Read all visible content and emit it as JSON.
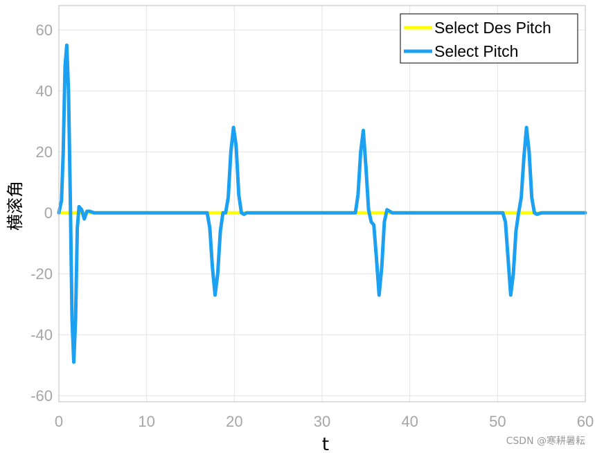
{
  "chart_data": {
    "type": "line",
    "title": "",
    "xlabel": "t",
    "ylabel": "横滚角",
    "xlim": [
      0,
      60
    ],
    "ylim": [
      -62,
      68
    ],
    "xticks": [
      0,
      10,
      20,
      30,
      40,
      50,
      60
    ],
    "yticks": [
      -60,
      -40,
      -20,
      0,
      20,
      40,
      60
    ],
    "xtick_labels": [
      "0",
      "10",
      "20",
      "30",
      "40",
      "50",
      "60"
    ],
    "ytick_labels": [
      "-60",
      "-40",
      "-20",
      "0",
      "20",
      "40",
      "60"
    ],
    "grid": true,
    "legend_position": "top-right",
    "series": [
      {
        "name": "Select Des Pitch",
        "color": "#ffff00",
        "x": [
          0,
          60
        ],
        "y": [
          0,
          0
        ]
      },
      {
        "name": "Select Pitch",
        "color": "#1ba0f2",
        "x": [
          0,
          0.3,
          0.5,
          0.7,
          0.9,
          1.1,
          1.3,
          1.5,
          1.7,
          1.9,
          2.1,
          2.3,
          2.6,
          2.9,
          3.2,
          3.5,
          4.0,
          5.0,
          16.9,
          17.2,
          17.5,
          17.8,
          18.1,
          18.4,
          18.7,
          19.0,
          19.3,
          19.6,
          19.9,
          20.2,
          20.5,
          20.8,
          21.1,
          21.4,
          22.0,
          33.8,
          34.1,
          34.4,
          34.7,
          35.0,
          35.3,
          35.6,
          35.9,
          36.2,
          36.5,
          36.8,
          37.1,
          37.4,
          37.7,
          38.0,
          38.5,
          50.3,
          50.6,
          50.9,
          51.2,
          51.5,
          51.8,
          52.1,
          52.4,
          52.7,
          53.0,
          53.3,
          53.6,
          53.9,
          54.2,
          54.5,
          55.0,
          60
        ],
        "y": [
          0,
          4,
          20,
          48,
          55,
          40,
          5,
          -35,
          -49,
          -35,
          -5,
          2,
          1,
          -2,
          0.5,
          0.5,
          0,
          0,
          0,
          -5,
          -18,
          -27,
          -20,
          -6,
          0,
          0,
          5,
          20,
          28,
          22,
          6,
          0,
          -0.5,
          0,
          0,
          0,
          6,
          20,
          27,
          15,
          1,
          -3,
          -4,
          -15,
          -27,
          -18,
          -3,
          1,
          0.5,
          0,
          0,
          0,
          0,
          -3,
          -15,
          -27,
          -20,
          -6,
          0,
          5,
          18,
          28,
          20,
          5,
          0,
          -0.5,
          0,
          0
        ]
      }
    ]
  },
  "watermark": "CSDN @寒耕暑耘"
}
